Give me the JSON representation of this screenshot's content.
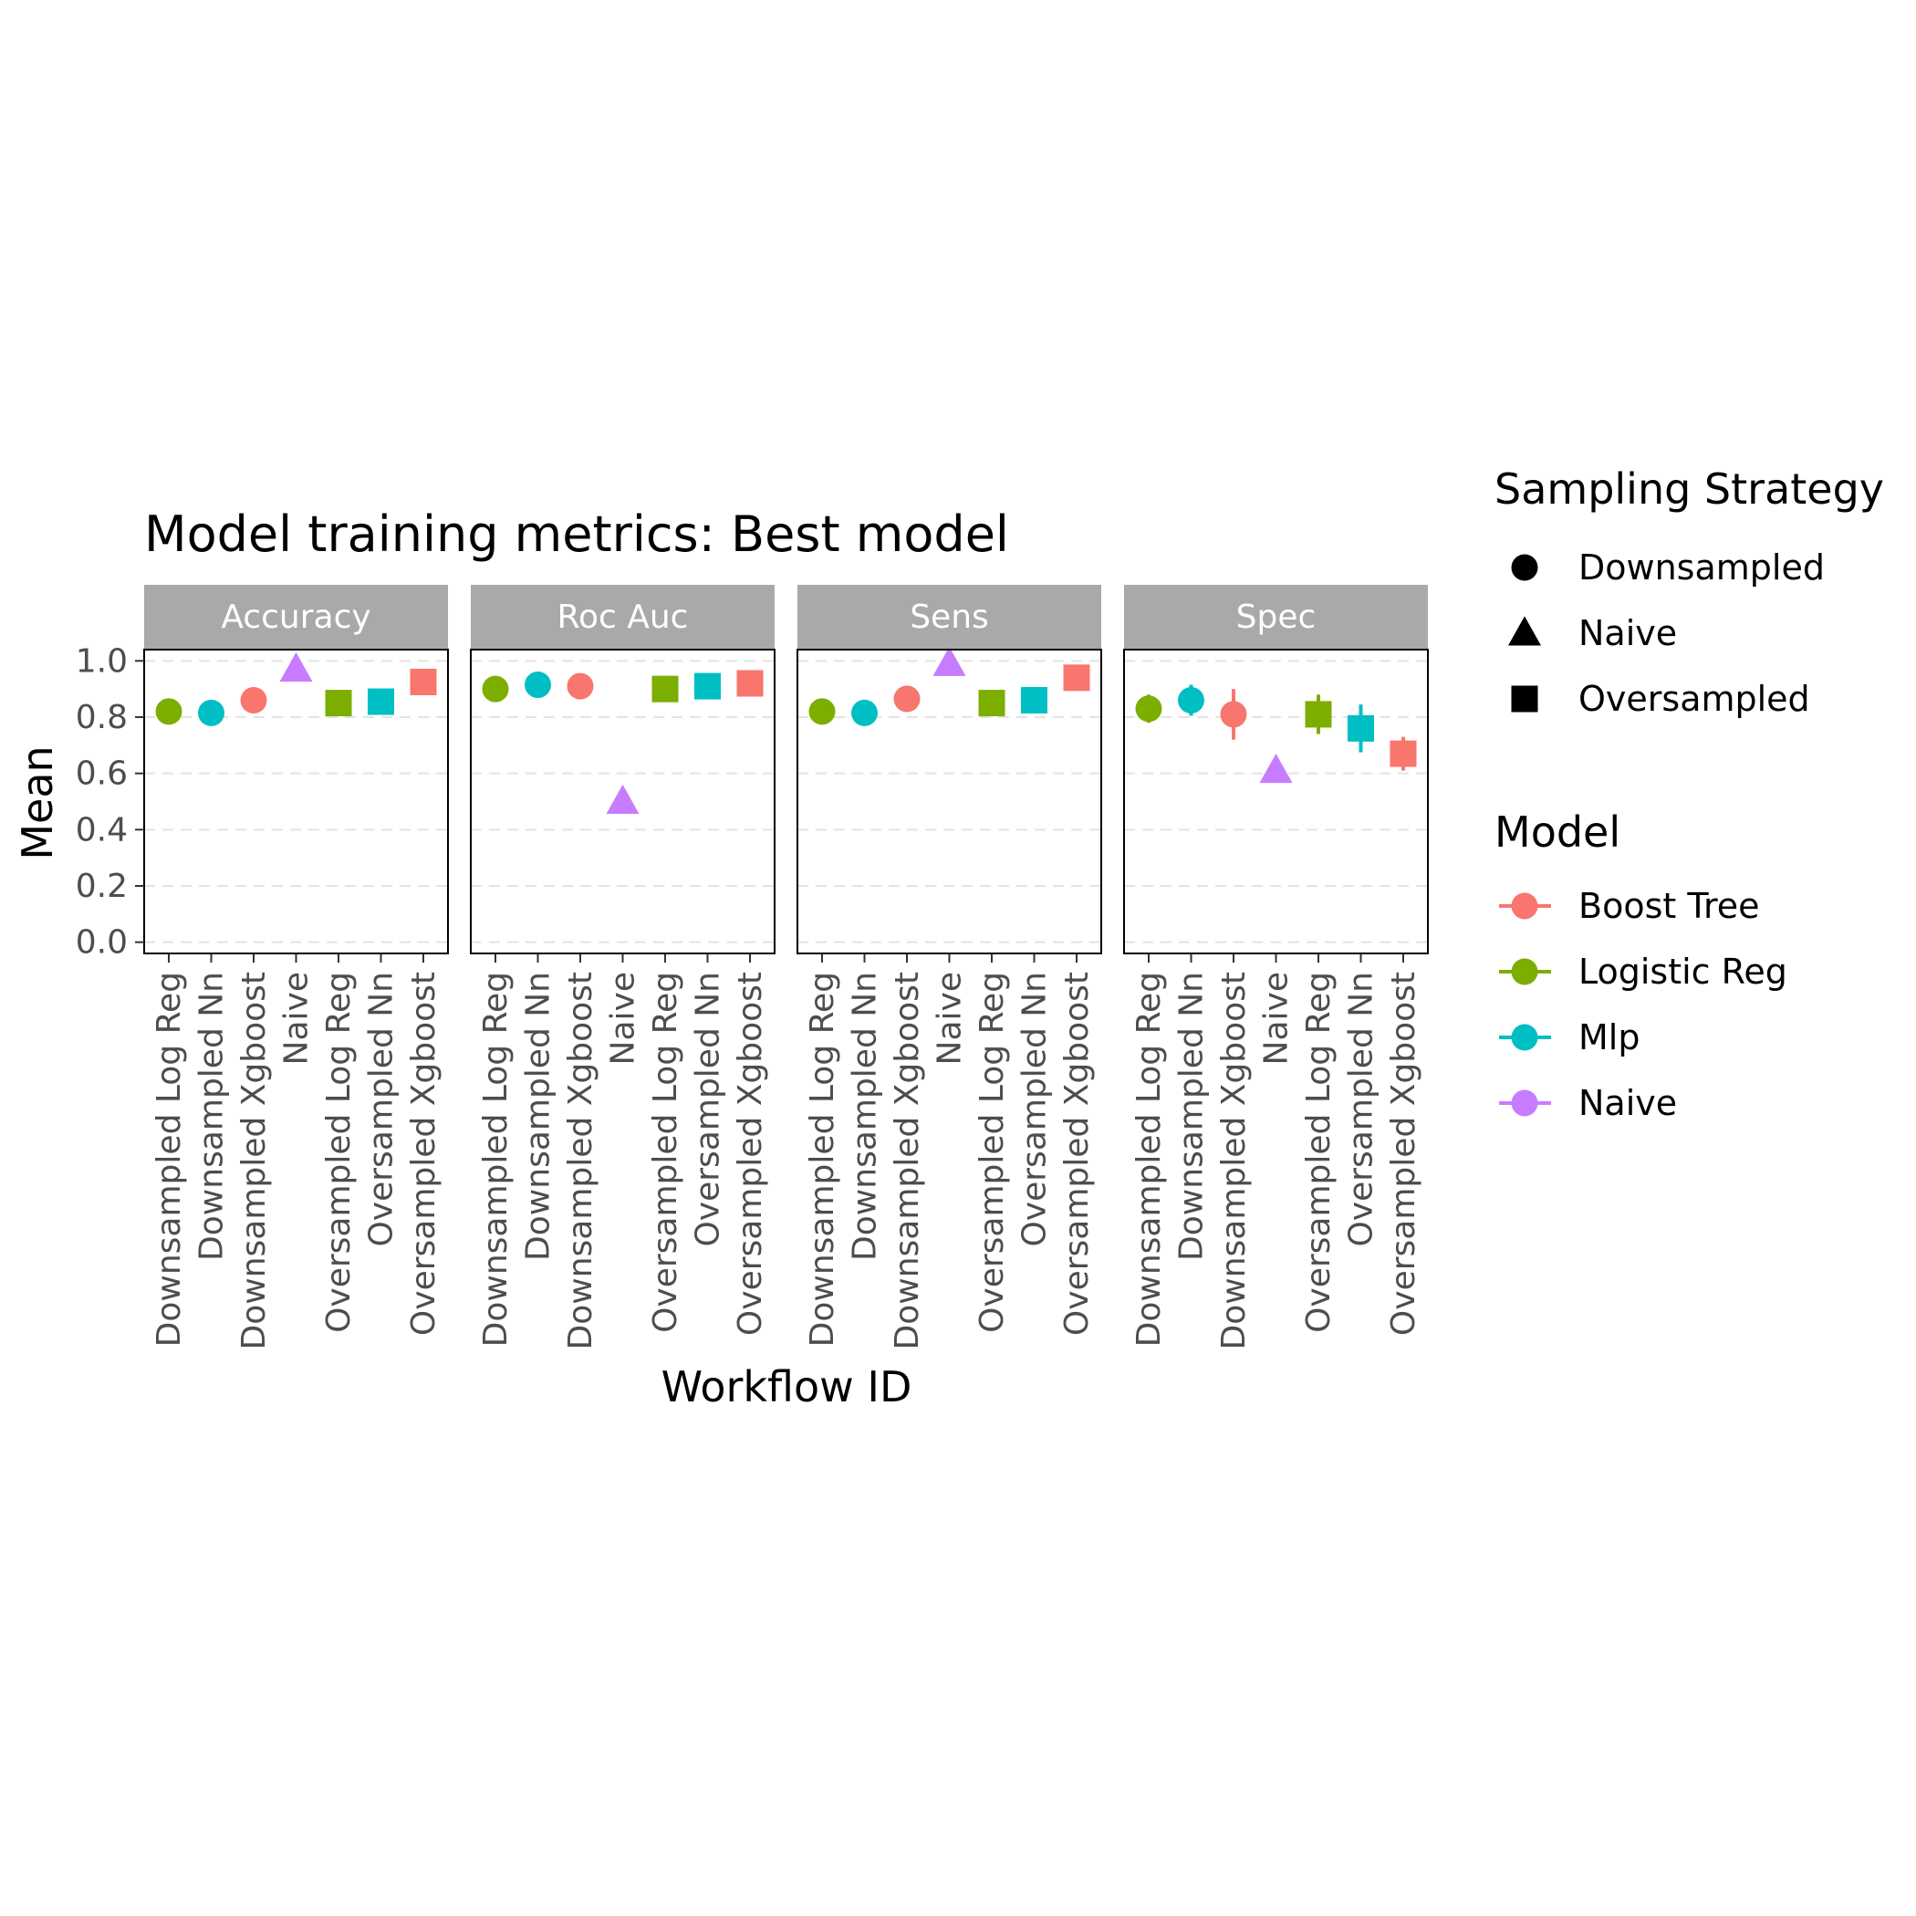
{
  "chart_data": {
    "type": "scatter",
    "title": "Model training metrics: Best model",
    "xlabel": "Workflow ID",
    "ylabel": "Mean",
    "ylim": [
      -0.04,
      1.04
    ],
    "yticks": [
      0.0,
      0.2,
      0.4,
      0.6,
      0.8,
      1.0
    ],
    "ytick_labels": [
      "0.0",
      "0.2",
      "0.4",
      "0.6",
      "0.8",
      "1.0"
    ],
    "categories": [
      "Downsampled Log Reg",
      "Downsampled Nn",
      "Downsampled Xgboost",
      "Naive",
      "Oversampled Log Reg",
      "Oversampled Nn",
      "Oversampled Xgboost"
    ],
    "point_model": [
      "Logistic Reg",
      "Mlp",
      "Boost Tree",
      "Naive",
      "Logistic Reg",
      "Mlp",
      "Boost Tree"
    ],
    "point_sampling": [
      "Downsampled",
      "Downsampled",
      "Downsampled",
      "Naive",
      "Oversampled",
      "Oversampled",
      "Oversampled"
    ],
    "facets": [
      {
        "name": "Accuracy",
        "values": [
          0.82,
          0.815,
          0.86,
          0.97,
          0.85,
          0.855,
          0.925
        ],
        "errors": [
          0.01,
          0.01,
          0.01,
          0.0,
          0.01,
          0.01,
          0.01
        ]
      },
      {
        "name": "Roc Auc",
        "values": [
          0.9,
          0.915,
          0.91,
          0.5,
          0.9,
          0.91,
          0.92
        ],
        "errors": [
          0.01,
          0.01,
          0.01,
          0.0,
          0.01,
          0.01,
          0.01
        ]
      },
      {
        "name": "Sens",
        "values": [
          0.82,
          0.815,
          0.865,
          0.99,
          0.85,
          0.86,
          0.94
        ],
        "errors": [
          0.01,
          0.01,
          0.01,
          0.0,
          0.01,
          0.01,
          0.01
        ]
      },
      {
        "name": "Spec",
        "values": [
          0.83,
          0.86,
          0.81,
          0.61,
          0.81,
          0.76,
          0.67
        ],
        "errors": [
          0.05,
          0.055,
          0.09,
          0.0,
          0.07,
          0.085,
          0.06
        ]
      }
    ],
    "legend": {
      "position": "right",
      "shape_title": "Sampling Strategy",
      "shape_items": [
        {
          "label": "Downsampled",
          "shape": "circle"
        },
        {
          "label": "Naive",
          "shape": "triangle"
        },
        {
          "label": "Oversampled",
          "shape": "square"
        }
      ],
      "color_title": "Model",
      "color_items": [
        {
          "label": "Boost Tree",
          "color": "#F8766D"
        },
        {
          "label": "Logistic Reg",
          "color": "#7CAE00"
        },
        {
          "label": "Mlp",
          "color": "#00BFC4"
        },
        {
          "label": "Naive",
          "color": "#C77CFF"
        }
      ]
    },
    "grid": "major y dashed",
    "strip_color": "#a9a9a9"
  }
}
